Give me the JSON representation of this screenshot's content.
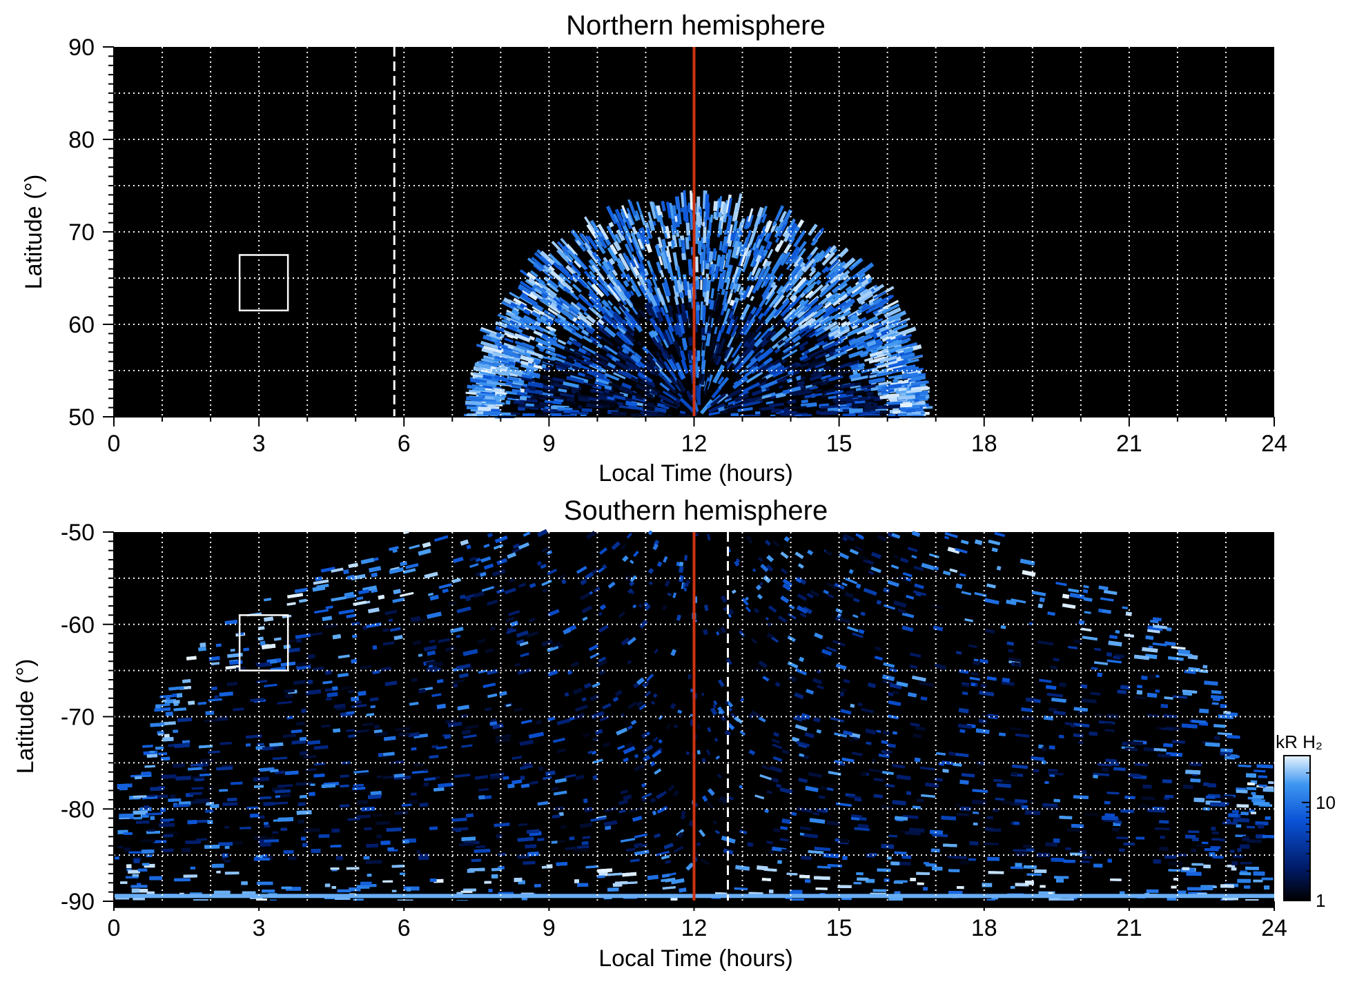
{
  "chart_data": [
    {
      "type": "heatmap",
      "title": "Northern hemisphere",
      "xlabel": "Local Time (hours)",
      "ylabel": "Latitude (°)",
      "xlim": [
        0,
        24
      ],
      "ylim": [
        50,
        90
      ],
      "x_ticks": [
        0,
        3,
        6,
        9,
        12,
        15,
        18,
        21,
        24
      ],
      "y_ticks": [
        50,
        60,
        70,
        80,
        90
      ],
      "grid": true,
      "noon_line_local_time": 12,
      "dashed_line_local_time": 5.8,
      "emission_region": {
        "local_time_range": [
          7.6,
          16.6
        ],
        "max_latitude": 73,
        "auroral_oval_latitude": [
          62,
          73
        ]
      },
      "box": {
        "local_time_range": [
          2.6,
          3.6
        ],
        "latitude_range": [
          61.5,
          67.5
        ]
      }
    },
    {
      "type": "heatmap",
      "title": "Southern hemisphere",
      "xlabel": "Local Time (hours)",
      "ylabel": "Latitude (°)",
      "xlim": [
        0,
        24
      ],
      "ylim": [
        -90,
        -50
      ],
      "x_ticks": [
        0,
        3,
        6,
        9,
        12,
        15,
        18,
        21,
        24
      ],
      "y_ticks": [
        -90,
        -80,
        -70,
        -60,
        -50
      ],
      "grid": true,
      "noon_line_local_time": 12,
      "dashed_line_local_time": 12.7,
      "emission_region": {
        "local_time_range": [
          0,
          24
        ],
        "dark_region_latitude_above": -75
      },
      "box": {
        "local_time_range": [
          2.6,
          3.6
        ],
        "latitude_range": [
          -65,
          -59
        ]
      }
    }
  ],
  "colorbar": {
    "label": "kR H₂",
    "ticks": [
      "1",
      "10"
    ],
    "scale": "log",
    "range": [
      1,
      30
    ],
    "colors": [
      "#000000",
      "#001a66",
      "#0a52d6",
      "#3d96f0",
      "#e8f4ff"
    ]
  },
  "colors": {
    "background": "#000000",
    "grid": "#ffffff",
    "noon_line": "#cc3311"
  }
}
